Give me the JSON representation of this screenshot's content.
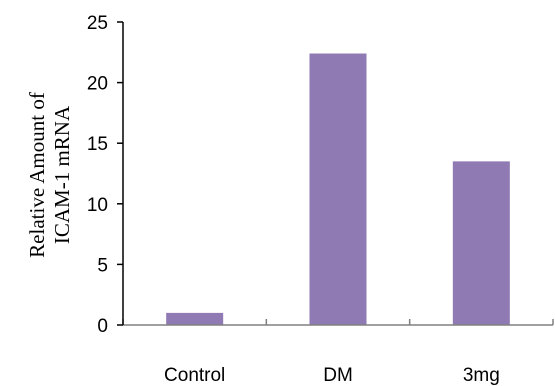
{
  "chart_data": {
    "type": "bar",
    "categories": [
      "Control",
      "DM",
      "3mg"
    ],
    "values": [
      1.0,
      22.4,
      13.5
    ],
    "ylabel_lines": [
      "Relative Amount of",
      "ICAM-1 mRNA"
    ],
    "xlabel": "",
    "ylim": [
      0,
      25
    ],
    "yticks": [
      "0",
      "5",
      "10",
      "15",
      "20",
      "25"
    ],
    "bar_color": "#8f7ab4",
    "grid": false,
    "legend": "none"
  }
}
